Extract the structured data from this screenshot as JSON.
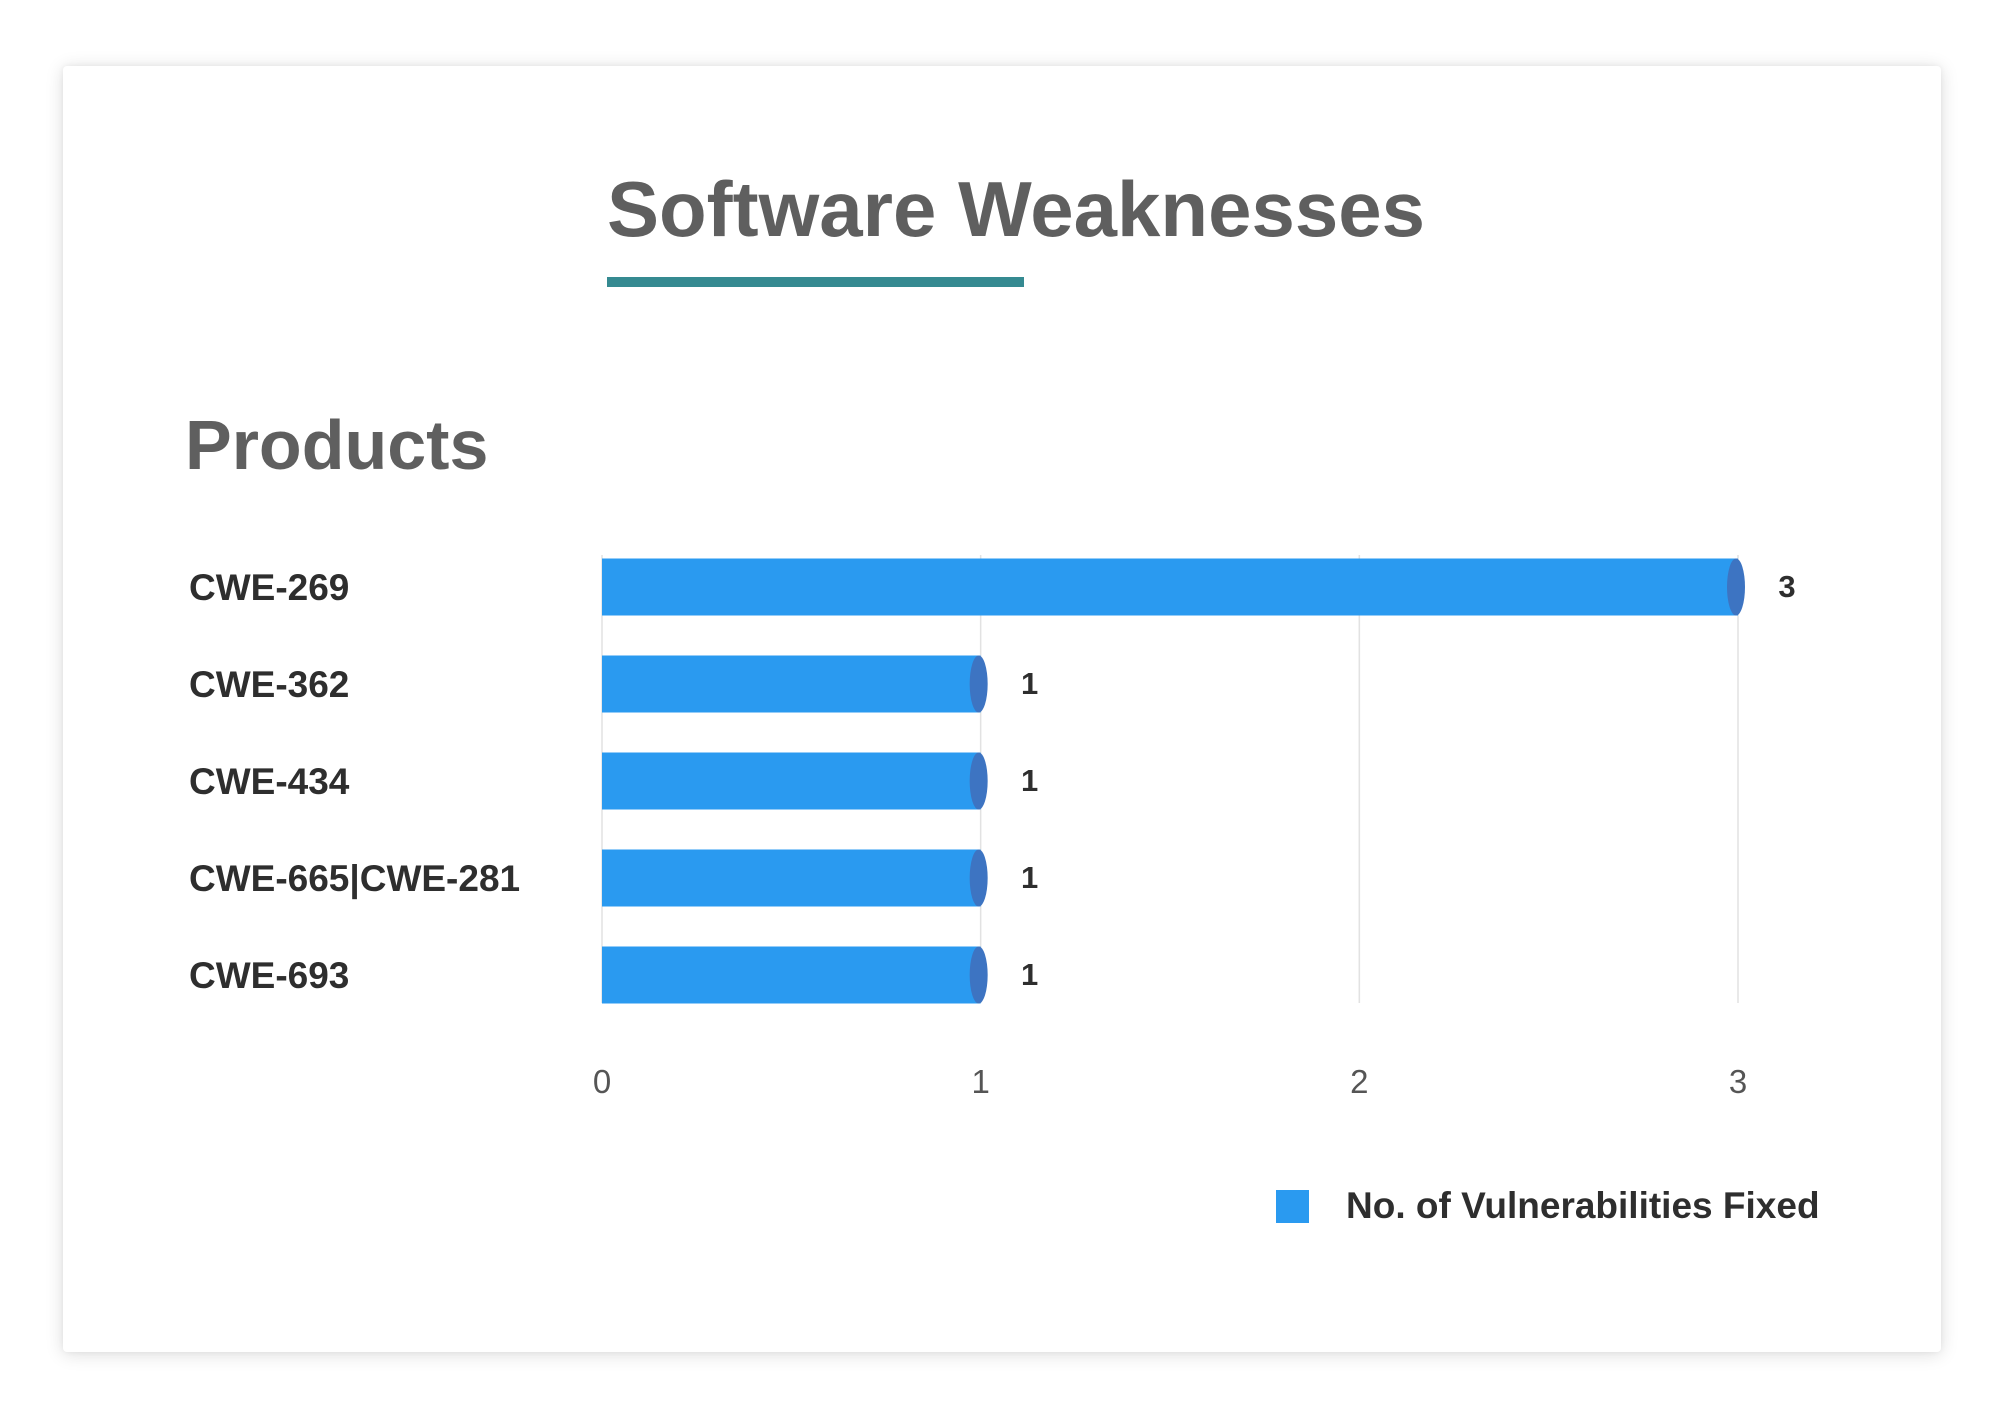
{
  "title": "Software Weaknesses",
  "subtitle": "Products",
  "colors": {
    "title_underline": "#358a91",
    "bar": "#2a9af0",
    "bar_cap": "#3d74c2",
    "gridline": "#e2e2e2"
  },
  "chart_data": {
    "type": "bar",
    "orientation": "horizontal",
    "categories": [
      "CWE-269",
      "CWE-362",
      "CWE-434",
      "CWE-665|CWE-281",
      "CWE-693"
    ],
    "series": [
      {
        "name": "No. of Vulnerabilities Fixed",
        "values": [
          3,
          1,
          1,
          1,
          1
        ]
      }
    ],
    "xlim": [
      0,
      3
    ],
    "x_ticks": [
      "0",
      "1",
      "2",
      "3"
    ],
    "data_labels": [
      "3",
      "1",
      "1",
      "1",
      "1"
    ],
    "grid": true,
    "legend_position": "bottom-right"
  }
}
